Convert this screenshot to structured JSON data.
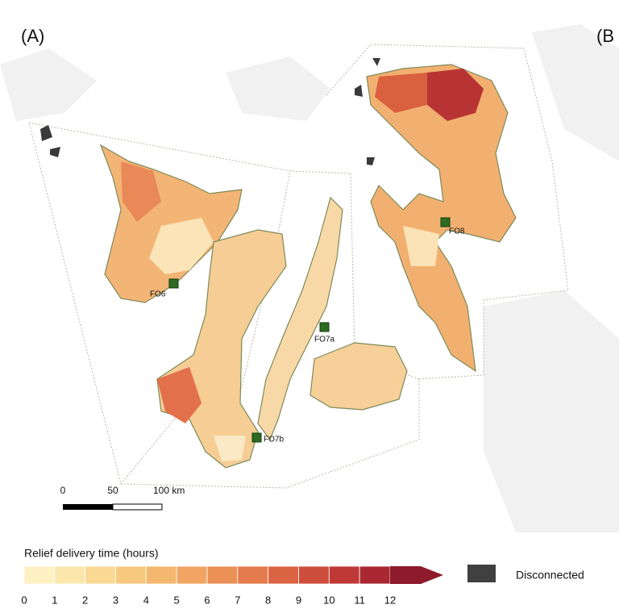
{
  "panel_label": "(A)",
  "next_panel_label": "(B",
  "facilities": [
    {
      "label": "FO6"
    },
    {
      "label": "FO7a"
    },
    {
      "label": "FO7b"
    },
    {
      "label": "FO8"
    }
  ],
  "scale_bar": {
    "labels": [
      "0",
      "50",
      "100 km"
    ]
  },
  "legend": {
    "title": "Relief delivery time (hours)",
    "ticks": [
      0,
      1,
      2,
      3,
      4,
      5,
      6,
      7,
      8,
      9,
      10,
      11,
      12
    ],
    "colors": [
      "#fdf1c4",
      "#fbe6ac",
      "#f9d994",
      "#f6c97e",
      "#f3b86d",
      "#f0a662",
      "#eb9156",
      "#e47b4d",
      "#da6444",
      "#ce4e3d",
      "#bf3a37",
      "#a92832",
      "#8e1b2b"
    ],
    "disconnected_label": "Disconnected",
    "disconnected_color": "#404040"
  }
}
